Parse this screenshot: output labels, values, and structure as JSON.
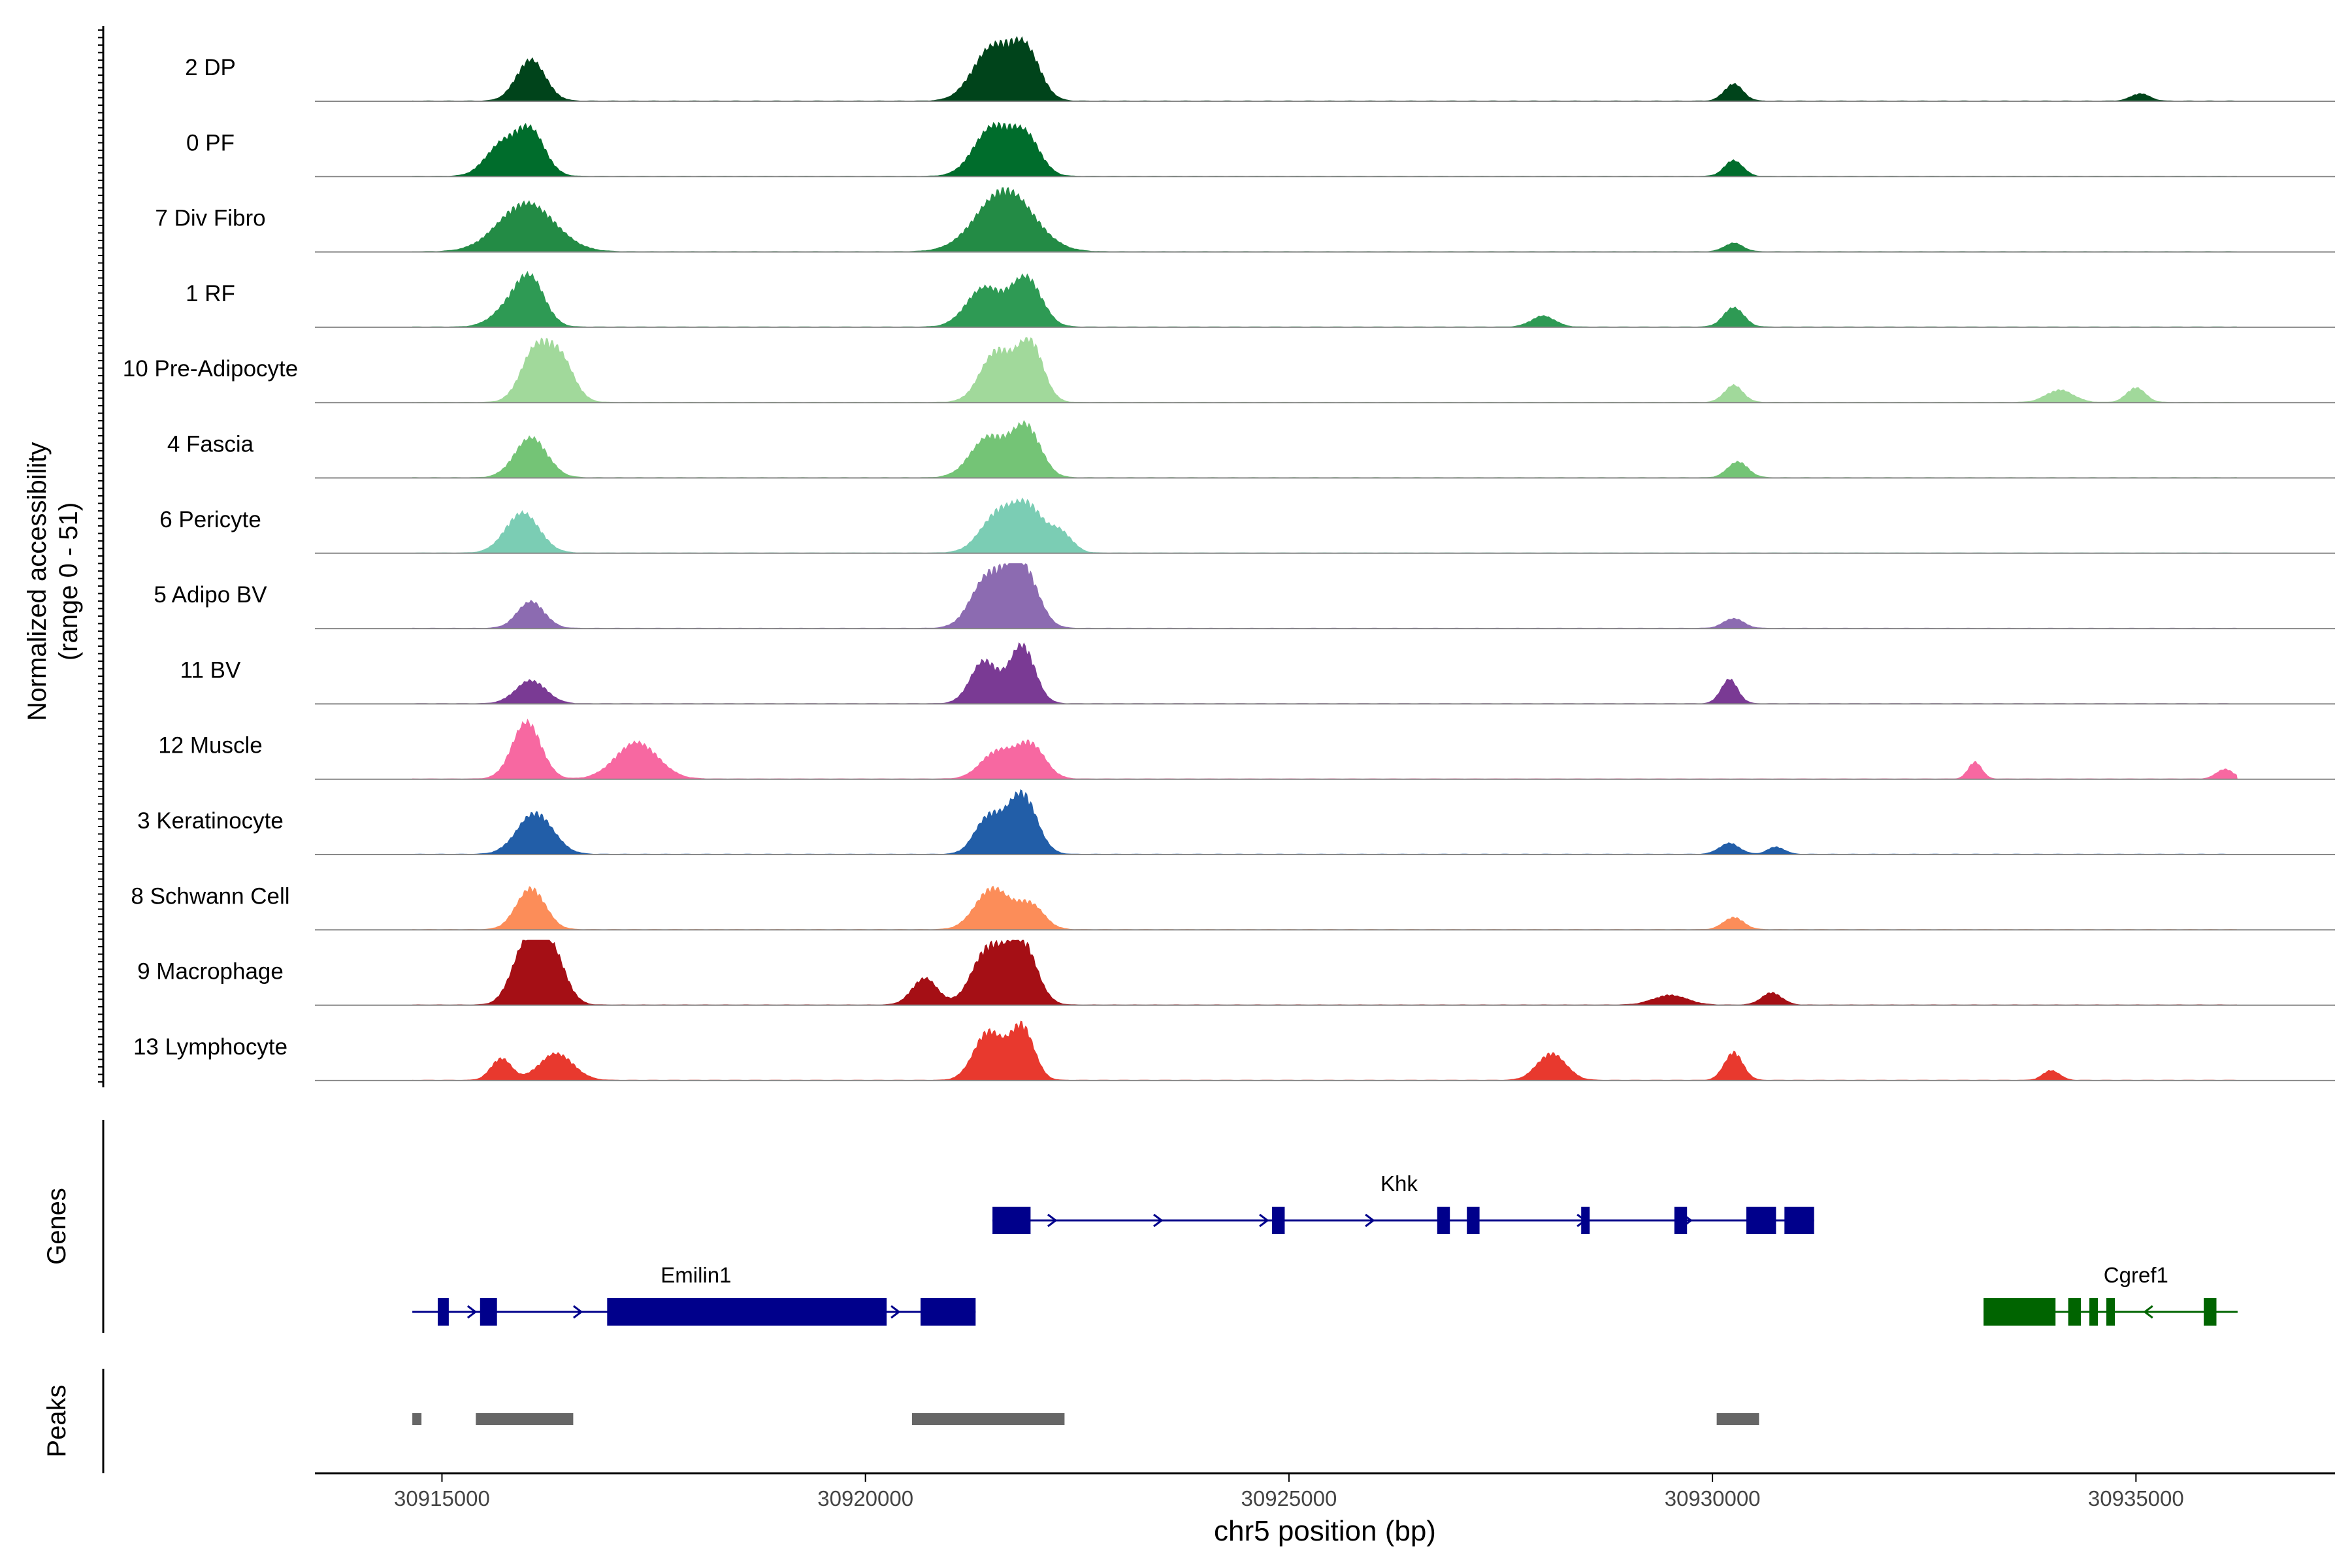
{
  "chart_data": {
    "type": "area",
    "title": "",
    "ylabel_lines": [
      "Normalized accessibility",
      "(range 0 - 51)"
    ],
    "y_range": [
      0,
      51
    ],
    "xlabel": "chr5 position (bp)",
    "xlim": [
      30913500,
      30937350
    ],
    "x_ticks": [
      30915000,
      30920000,
      30925000,
      30930000,
      30935000
    ],
    "x_tick_labels": [
      "30915000",
      "30920000",
      "30925000",
      "30930000",
      "30935000"
    ],
    "track_range_bp": [
      30914650,
      30936200
    ],
    "series": [
      {
        "name": "2 DP",
        "color": "#00441B",
        "peaks": [
          [
            30916050,
            34,
            170
          ],
          [
            30921500,
            44,
            230
          ],
          [
            30921900,
            38,
            170
          ],
          [
            30930250,
            14,
            110
          ],
          [
            30935050,
            6,
            110
          ]
        ]
      },
      {
        "name": "0 PF",
        "color": "#006D2C",
        "peaks": [
          [
            30915700,
            25,
            190
          ],
          [
            30916050,
            36,
            170
          ],
          [
            30921500,
            40,
            220
          ],
          [
            30921900,
            30,
            170
          ],
          [
            30930250,
            13,
            110
          ]
        ]
      },
      {
        "name": "7 Div Fibro",
        "color": "#238B45",
        "peaks": [
          [
            30916000,
            40,
            330
          ],
          [
            30921650,
            51,
            330
          ],
          [
            30930250,
            7,
            110
          ]
        ]
      },
      {
        "name": "1 RF",
        "color": "#2E9A54",
        "peaks": [
          [
            30915800,
            15,
            200
          ],
          [
            30916050,
            36,
            170
          ],
          [
            30921400,
            32,
            210
          ],
          [
            30921900,
            40,
            180
          ],
          [
            30928000,
            9,
            140
          ],
          [
            30930250,
            16,
            120
          ]
        ]
      },
      {
        "name": "10 Pre-Adipocyte",
        "color": "#A1D99B",
        "peaks": [
          [
            30916100,
            42,
            170
          ],
          [
            30916400,
            34,
            160
          ],
          [
            30921550,
            42,
            190
          ],
          [
            30921950,
            48,
            150
          ],
          [
            30930250,
            14,
            110
          ],
          [
            30934100,
            10,
            160
          ],
          [
            30935000,
            12,
            110
          ]
        ]
      },
      {
        "name": "4 Fascia",
        "color": "#74C476",
        "peaks": [
          [
            30916050,
            33,
            190
          ],
          [
            30921450,
            33,
            210
          ],
          [
            30921900,
            41,
            170
          ],
          [
            30930300,
            13,
            120
          ]
        ]
      },
      {
        "name": "6 Pericyte",
        "color": "#7BCDB4",
        "peaks": [
          [
            30915950,
            33,
            200
          ],
          [
            30921600,
            35,
            220
          ],
          [
            30921950,
            30,
            160
          ],
          [
            30922300,
            17,
            140
          ]
        ]
      },
      {
        "name": "5 Adipo BV",
        "color": "#8C6BB1",
        "peaks": [
          [
            30916050,
            22,
            160
          ],
          [
            30921450,
            42,
            200
          ],
          [
            30921850,
            51,
            180
          ],
          [
            30930250,
            8,
            120
          ]
        ]
      },
      {
        "name": "11 BV",
        "color": "#7A3A94",
        "peaks": [
          [
            30916050,
            19,
            180
          ],
          [
            30921400,
            35,
            160
          ],
          [
            30921850,
            48,
            150
          ],
          [
            30930200,
            20,
            100
          ]
        ]
      },
      {
        "name": "12 Muscle",
        "color": "#F768A1",
        "peaks": [
          [
            30916000,
            47,
            170
          ],
          [
            30917300,
            30,
            250
          ],
          [
            30921550,
            22,
            190
          ],
          [
            30921950,
            28,
            170
          ],
          [
            30933100,
            14,
            80
          ],
          [
            30936050,
            8,
            100
          ]
        ]
      },
      {
        "name": "3 Keratinocyte",
        "color": "#225EA8",
        "peaks": [
          [
            30916100,
            34,
            210
          ],
          [
            30921450,
            30,
            160
          ],
          [
            30921850,
            50,
            170
          ],
          [
            30930200,
            9,
            120
          ],
          [
            30930750,
            6,
            100
          ]
        ]
      },
      {
        "name": "8 Schwann Cell",
        "color": "#FC8D59",
        "peaks": [
          [
            30916050,
            34,
            170
          ],
          [
            30921500,
            34,
            200
          ],
          [
            30921950,
            20,
            160
          ],
          [
            30930250,
            10,
            120
          ]
        ]
      },
      {
        "name": "9 Macrophage",
        "color": "#A50F15",
        "peaks": [
          [
            30916000,
            50,
            170
          ],
          [
            30916300,
            42,
            160
          ],
          [
            30920700,
            22,
            150
          ],
          [
            30921450,
            46,
            190
          ],
          [
            30921850,
            51,
            170
          ],
          [
            30929500,
            8,
            200
          ],
          [
            30930700,
            10,
            120
          ]
        ]
      },
      {
        "name": "13 Lymphocyte",
        "color": "#E8392E",
        "peaks": [
          [
            30915700,
            18,
            120
          ],
          [
            30916350,
            22,
            200
          ],
          [
            30921450,
            40,
            170
          ],
          [
            30921850,
            44,
            140
          ],
          [
            30928100,
            22,
            170
          ],
          [
            30930250,
            23,
            110
          ],
          [
            30934000,
            8,
            100
          ]
        ]
      }
    ],
    "genes_label": "Genes",
    "genes": [
      {
        "name": "Khk",
        "strand": "+",
        "row": 1,
        "start": 30921500,
        "end": 30931200,
        "color": "#00008B",
        "exons": [
          [
            30921500,
            30921950
          ],
          [
            30924800,
            30924950
          ],
          [
            30926750,
            30926900
          ],
          [
            30927100,
            30927250
          ],
          [
            30928450,
            30928550
          ],
          [
            30929550,
            30929700
          ],
          [
            30930400,
            30930750
          ],
          [
            30930850,
            30931200
          ]
        ]
      },
      {
        "name": "Emilin1",
        "strand": "+",
        "row": 2,
        "start": 30914650,
        "end": 30921300,
        "color": "#00008B",
        "exons": [
          [
            30914950,
            30915080
          ],
          [
            30915450,
            30915650
          ],
          [
            30916950,
            30920250
          ],
          [
            30920650,
            30921300
          ]
        ]
      },
      {
        "name": "Cgref1",
        "strand": "-",
        "row": 2,
        "start": 30933200,
        "end": 30936200,
        "color": "#006400",
        "exons": [
          [
            30933200,
            30934050
          ],
          [
            30934200,
            30934350
          ],
          [
            30934450,
            30934550
          ],
          [
            30934650,
            30934750
          ],
          [
            30935800,
            30935950
          ]
        ]
      }
    ],
    "peaks_label": "Peaks",
    "peaks_color": "#666666",
    "peak_regions": [
      [
        30914650,
        30914750
      ],
      [
        30915400,
        30916550
      ],
      [
        30920550,
        30922350
      ],
      [
        30930050,
        30930550
      ]
    ]
  }
}
